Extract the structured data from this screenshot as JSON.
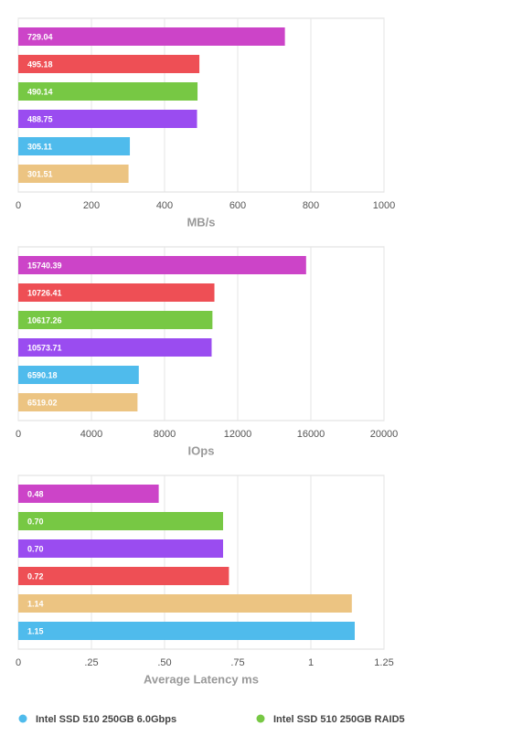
{
  "chart_data": [
    {
      "type": "bar",
      "orientation": "horizontal",
      "xlabel": "MB/s",
      "values": [
        729.04,
        495.18,
        490.14,
        488.75,
        305.11,
        301.51
      ],
      "colors": [
        "#cc44c8",
        "#ee4f55",
        "#77c844",
        "#9a4cf0",
        "#4fbbec",
        "#ecc482"
      ],
      "xlim": [
        0,
        1000
      ],
      "xticks": [
        0,
        200,
        400,
        600,
        800,
        1000
      ],
      "grid": true
    },
    {
      "type": "bar",
      "orientation": "horizontal",
      "xlabel": "IOps",
      "values": [
        15740.39,
        10726.41,
        10617.26,
        10573.71,
        6590.18,
        6519.02
      ],
      "colors": [
        "#cc44c8",
        "#ee4f55",
        "#77c844",
        "#9a4cf0",
        "#4fbbec",
        "#ecc482"
      ],
      "xlim": [
        0,
        20000
      ],
      "xticks": [
        0,
        4000,
        8000,
        12000,
        16000,
        20000
      ],
      "grid": true
    },
    {
      "type": "bar",
      "orientation": "horizontal",
      "xlabel": "Average Latency ms",
      "values": [
        0.48,
        0.7,
        0.7,
        0.72,
        1.14,
        1.15
      ],
      "value_labels": [
        "0.48",
        "0.70",
        "0.70",
        "0.72",
        "1.14",
        "1.15"
      ],
      "colors": [
        "#cc44c8",
        "#77c844",
        "#9a4cf0",
        "#ee4f55",
        "#ecc482",
        "#4fbbec"
      ],
      "xlim": [
        0,
        1.25
      ],
      "xticks": [
        0,
        {
          "value": 0.25,
          "label": ".25"
        },
        {
          "value": 0.5,
          "label": ".50"
        },
        {
          "value": 0.75,
          "label": ".75"
        },
        1,
        1.25
      ],
      "grid": true
    }
  ],
  "legend": [
    {
      "name": "Intel SSD 510 250GB 6.0Gbps",
      "color": "#4fbbec"
    },
    {
      "name": "Intel SSD 510 250GB RAID5",
      "color": "#77c844"
    }
  ]
}
